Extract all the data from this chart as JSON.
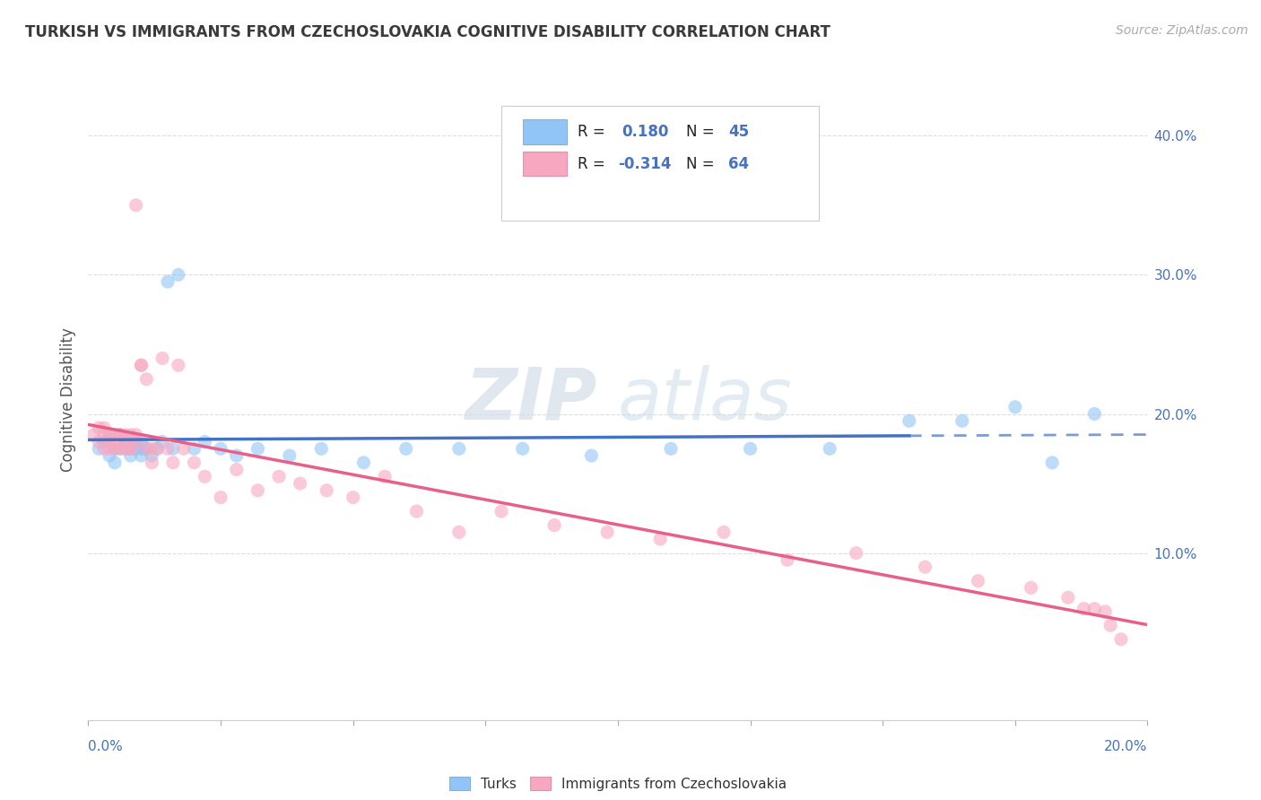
{
  "title": "TURKISH VS IMMIGRANTS FROM CZECHOSLOVAKIA COGNITIVE DISABILITY CORRELATION CHART",
  "source": "Source: ZipAtlas.com",
  "ylabel": "Cognitive Disability",
  "xlim": [
    0.0,
    0.2
  ],
  "ylim": [
    -0.02,
    0.44
  ],
  "yticks": [
    0.1,
    0.2,
    0.3,
    0.4
  ],
  "ytick_labels": [
    "10.0%",
    "20.0%",
    "30.0%",
    "40.0%"
  ],
  "turks_R": 0.18,
  "turks_N": 45,
  "czech_R": -0.314,
  "czech_N": 64,
  "color_turks": "#92c5f7",
  "color_czech": "#f7a8c0",
  "color_turks_line": "#4472c4",
  "color_czech_line": "#e8608a",
  "color_title": "#3a3a3a",
  "color_axis_labels": "#4472c4",
  "background_color": "#ffffff",
  "grid_color": "#dddddd",
  "turks_x": [
    0.002,
    0.003,
    0.004,
    0.004,
    0.005,
    0.005,
    0.006,
    0.006,
    0.007,
    0.007,
    0.008,
    0.008,
    0.009,
    0.009,
    0.01,
    0.01,
    0.01,
    0.011,
    0.011,
    0.012,
    0.013,
    0.014,
    0.015,
    0.016,
    0.017,
    0.02,
    0.022,
    0.025,
    0.028,
    0.032,
    0.038,
    0.044,
    0.052,
    0.06,
    0.07,
    0.082,
    0.095,
    0.11,
    0.125,
    0.14,
    0.155,
    0.165,
    0.175,
    0.182,
    0.19
  ],
  "turks_y": [
    0.175,
    0.18,
    0.17,
    0.185,
    0.175,
    0.165,
    0.175,
    0.185,
    0.175,
    0.18,
    0.17,
    0.175,
    0.18,
    0.175,
    0.17,
    0.175,
    0.18,
    0.175,
    0.175,
    0.17,
    0.175,
    0.18,
    0.295,
    0.175,
    0.3,
    0.175,
    0.18,
    0.175,
    0.17,
    0.175,
    0.17,
    0.175,
    0.165,
    0.175,
    0.175,
    0.175,
    0.17,
    0.175,
    0.175,
    0.175,
    0.195,
    0.195,
    0.205,
    0.165,
    0.2
  ],
  "czech_x": [
    0.001,
    0.002,
    0.002,
    0.003,
    0.003,
    0.003,
    0.004,
    0.004,
    0.004,
    0.005,
    0.005,
    0.005,
    0.006,
    0.006,
    0.006,
    0.007,
    0.007,
    0.007,
    0.008,
    0.008,
    0.008,
    0.009,
    0.009,
    0.009,
    0.01,
    0.01,
    0.011,
    0.011,
    0.012,
    0.012,
    0.013,
    0.014,
    0.015,
    0.016,
    0.017,
    0.018,
    0.02,
    0.022,
    0.025,
    0.028,
    0.032,
    0.036,
    0.04,
    0.045,
    0.05,
    0.056,
    0.062,
    0.07,
    0.078,
    0.088,
    0.098,
    0.108,
    0.12,
    0.132,
    0.145,
    0.158,
    0.168,
    0.178,
    0.185,
    0.188,
    0.19,
    0.192,
    0.193,
    0.195
  ],
  "czech_y": [
    0.185,
    0.19,
    0.18,
    0.185,
    0.175,
    0.19,
    0.18,
    0.175,
    0.185,
    0.175,
    0.185,
    0.18,
    0.185,
    0.175,
    0.185,
    0.175,
    0.18,
    0.185,
    0.175,
    0.185,
    0.175,
    0.185,
    0.18,
    0.35,
    0.235,
    0.235,
    0.175,
    0.225,
    0.165,
    0.175,
    0.175,
    0.24,
    0.175,
    0.165,
    0.235,
    0.175,
    0.165,
    0.155,
    0.14,
    0.16,
    0.145,
    0.155,
    0.15,
    0.145,
    0.14,
    0.155,
    0.13,
    0.115,
    0.13,
    0.12,
    0.115,
    0.11,
    0.115,
    0.095,
    0.1,
    0.09,
    0.08,
    0.075,
    0.068,
    0.06,
    0.06,
    0.058,
    0.048,
    0.038
  ]
}
